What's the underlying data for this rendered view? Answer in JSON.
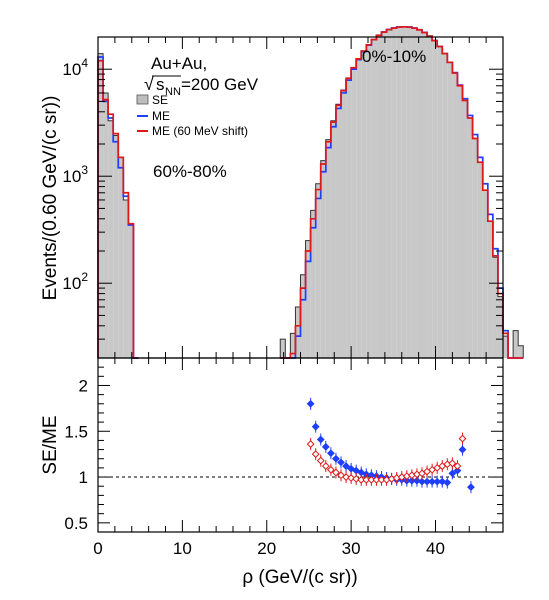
{
  "chart_data": [
    {
      "type": "bar",
      "panel": "top",
      "ylabel": "Events/(0.60 GeV/(c sr))",
      "x_log": false,
      "y_log": true,
      "xlim": [
        0,
        48
      ],
      "ylim": [
        20,
        20000
      ],
      "x_ticks": [
        "0",
        "10",
        "20",
        "30",
        "40"
      ],
      "y_ticks": [
        "10^2",
        "10^3",
        "10^4"
      ],
      "grid": false,
      "legend_position": "top-left",
      "annotations": {
        "system": "Au+Au,",
        "energy_sqrt": "√",
        "energy_s": "s",
        "energy_sub": "NN",
        "energy_value": "=200 GeV",
        "centrality_high": "0%-10%",
        "centrality_low": "60%-80%"
      },
      "legend": {
        "se": "SE",
        "me": "ME",
        "me_shift": "ME (60 MeV shift)"
      },
      "colors": {
        "se_fill": "#c8c8c8",
        "se_line": "#333333",
        "me": "#1f3fff",
        "me_shift": "#e01818"
      },
      "bin_width": 0.6,
      "series": [
        {
          "name": "SE",
          "x_start": 0.0,
          "values": [
            14000,
            6000,
            3300,
            2400,
            1500,
            600,
            350,
            18
          ]
        },
        {
          "name": "SE",
          "x_start": 21.6,
          "values": [
            30,
            20,
            34,
            60,
            120,
            250,
            480,
            850,
            1400,
            2200,
            3300,
            4700,
            6400,
            8300,
            10400,
            12600,
            14800,
            16900,
            18900,
            20700,
            22200,
            23400,
            24200,
            24700,
            24900,
            24700,
            24200,
            23300,
            22000,
            20400,
            18500,
            16300,
            14000,
            11600,
            9200,
            7000,
            5100,
            3500,
            2250,
            1350,
            740,
            380,
            175,
            75,
            32,
            20,
            36,
            26
          ]
        },
        {
          "name": "ME",
          "x_start": 0.0,
          "values": [
            13000,
            5000,
            3500,
            2100,
            1200,
            650,
            350,
            18
          ]
        },
        {
          "name": "ME",
          "x_start": 21.6,
          "values": [
            18,
            18,
            20,
            32,
            70,
            160,
            330,
            620,
            1100,
            1850,
            2900,
            4300,
            6000,
            7900,
            10000,
            12300,
            14600,
            16800,
            18900,
            20800,
            22300,
            23500,
            24300,
            24800,
            24900,
            24800,
            24300,
            23400,
            22100,
            20400,
            18500,
            16300,
            14000,
            11600,
            9300,
            7100,
            5300,
            3700,
            2450,
            1500,
            850,
            440,
            210,
            90,
            36,
            20,
            18,
            18
          ]
        },
        {
          "name": "ME (60 MeV shift)",
          "x_start": 0.0,
          "values": [
            12000,
            5200,
            3800,
            2500,
            1500,
            700,
            360,
            18
          ]
        },
        {
          "name": "ME (60 MeV shift)",
          "x_start": 21.6,
          "values": [
            18,
            18,
            22,
            40,
            90,
            200,
            400,
            750,
            1300,
            2100,
            3200,
            4600,
            6300,
            8200,
            10300,
            12500,
            14800,
            16900,
            18900,
            20700,
            22200,
            23400,
            24200,
            24700,
            24900,
            24700,
            24200,
            23300,
            22000,
            20400,
            18500,
            16300,
            14000,
            11600,
            9200,
            7000,
            5100,
            3500,
            2250,
            1350,
            740,
            380,
            180,
            80,
            34,
            20,
            18,
            18
          ]
        }
      ]
    },
    {
      "type": "scatter",
      "panel": "bottom",
      "xlabel": "ρ (GeV/(c sr))",
      "ylabel": "SE/ME",
      "xlim": [
        0,
        48
      ],
      "ylim": [
        0.4,
        2.3
      ],
      "x_ticks": [
        "0",
        "10",
        "20",
        "30",
        "40"
      ],
      "y_ticks": [
        "0.5",
        "1",
        "1.5",
        "2"
      ],
      "reference_line": 1.0,
      "grid": false,
      "series": [
        {
          "name": "ME",
          "marker": "filled-diamond",
          "color": "#1f3fff",
          "points": [
            [
              25.2,
              1.8
            ],
            [
              25.8,
              1.55
            ],
            [
              26.4,
              1.41
            ],
            [
              27.0,
              1.33
            ],
            [
              27.6,
              1.26
            ],
            [
              28.2,
              1.2
            ],
            [
              28.8,
              1.16
            ],
            [
              29.4,
              1.12
            ],
            [
              30.0,
              1.09
            ],
            [
              30.6,
              1.07
            ],
            [
              31.2,
              1.05
            ],
            [
              31.8,
              1.03
            ],
            [
              32.4,
              1.02
            ],
            [
              33.0,
              1.01
            ],
            [
              33.6,
              1.0
            ],
            [
              34.2,
              0.99
            ],
            [
              34.8,
              0.98
            ],
            [
              35.4,
              0.97
            ],
            [
              36.0,
              0.97
            ],
            [
              36.6,
              0.96
            ],
            [
              37.2,
              0.96
            ],
            [
              37.8,
              0.96
            ],
            [
              38.4,
              0.95
            ],
            [
              39.0,
              0.95
            ],
            [
              39.6,
              0.95
            ],
            [
              40.2,
              0.95
            ],
            [
              40.8,
              0.95
            ],
            [
              41.4,
              0.94
            ],
            [
              42.0,
              1.04
            ],
            [
              42.6,
              1.07
            ],
            [
              43.2,
              1.3
            ],
            [
              44.2,
              0.89
            ]
          ]
        },
        {
          "name": "ME (60 MeV shift)",
          "marker": "open-diamond",
          "color": "#e01818",
          "points": [
            [
              25.2,
              1.36
            ],
            [
              25.8,
              1.25
            ],
            [
              26.4,
              1.18
            ],
            [
              27.0,
              1.12
            ],
            [
              27.6,
              1.08
            ],
            [
              28.2,
              1.05
            ],
            [
              28.8,
              1.02
            ],
            [
              29.4,
              1.0
            ],
            [
              30.0,
              0.99
            ],
            [
              30.6,
              0.98
            ],
            [
              31.2,
              0.97
            ],
            [
              31.8,
              0.97
            ],
            [
              32.4,
              0.97
            ],
            [
              33.0,
              0.97
            ],
            [
              33.6,
              0.97
            ],
            [
              34.2,
              0.97
            ],
            [
              34.8,
              0.98
            ],
            [
              35.4,
              0.99
            ],
            [
              36.0,
              1.0
            ],
            [
              36.6,
              1.01
            ],
            [
              37.2,
              1.02
            ],
            [
              37.8,
              1.03
            ],
            [
              38.4,
              1.04
            ],
            [
              39.0,
              1.06
            ],
            [
              39.6,
              1.08
            ],
            [
              40.2,
              1.1
            ],
            [
              40.8,
              1.12
            ],
            [
              41.4,
              1.14
            ],
            [
              42.0,
              1.15
            ],
            [
              42.6,
              1.12
            ],
            [
              43.2,
              1.42
            ]
          ]
        }
      ]
    }
  ]
}
